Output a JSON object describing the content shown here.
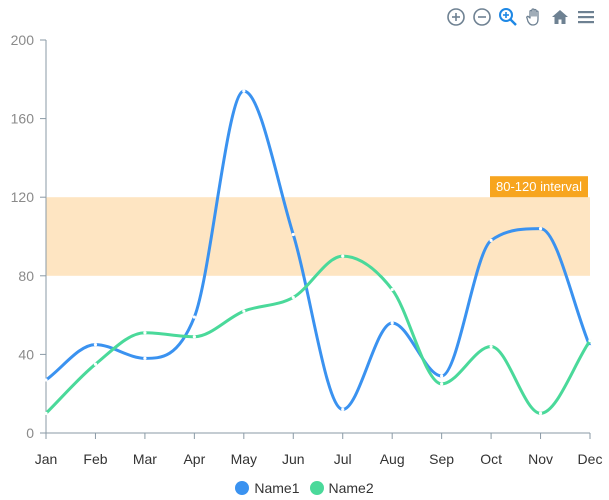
{
  "toolbar": {
    "zoom_in": "zoom-in-icon",
    "zoom_out": "zoom-out-icon",
    "zoom_select": "zoom-select-icon",
    "pan": "pan-hand-icon",
    "reset": "home-icon",
    "menu": "menu-icon"
  },
  "colors": {
    "series1": "#3a92f0",
    "series2": "#4ad99a",
    "band": "#fee5c2",
    "band_label": "#f7a51f",
    "axis": "#8a9aa6"
  },
  "chart_data": {
    "type": "line",
    "curve": "smooth",
    "categories": [
      "Jan",
      "Feb",
      "Mar",
      "Apr",
      "May",
      "Jun",
      "Jul",
      "Aug",
      "Sep",
      "Oct",
      "Nov",
      "Dec"
    ],
    "series": [
      {
        "name": "Name1",
        "values": [
          27,
          45,
          38,
          59,
          174,
          101,
          12,
          56,
          29,
          98,
          104,
          44
        ]
      },
      {
        "name": "Name2",
        "values": [
          10,
          35,
          51,
          49,
          62,
          69,
          90,
          73,
          25,
          44,
          10,
          47
        ]
      }
    ],
    "yticks": [
      "0",
      "40",
      "80",
      "120",
      "160",
      "200"
    ],
    "ylim": [
      0,
      200
    ],
    "annotations": [
      {
        "type": "y-band",
        "from": 80,
        "to": 120,
        "label": "80-120 interval"
      }
    ],
    "grid": false,
    "legend": "bottom"
  }
}
